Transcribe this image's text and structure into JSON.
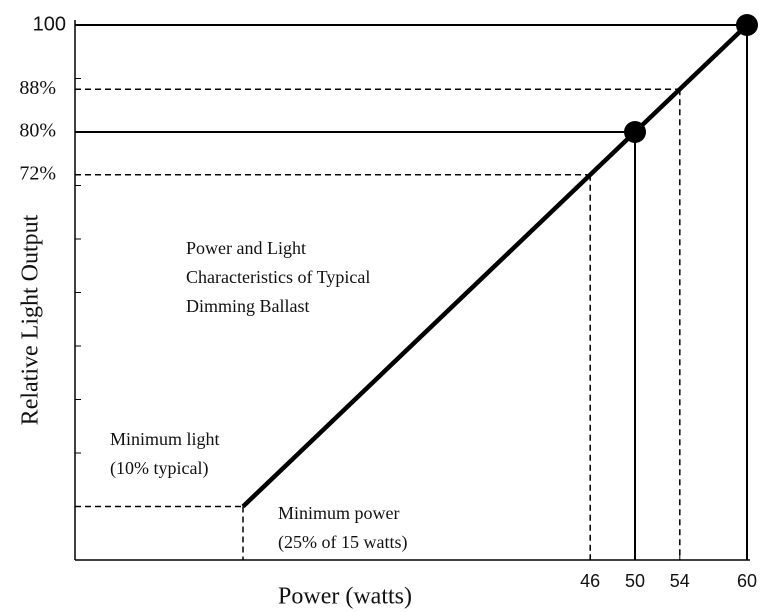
{
  "chart_data": {
    "type": "line",
    "title_lines": [
      "Power and Light",
      "Characteristics of Typical",
      "Dimming Ballast"
    ],
    "xlabel": "Power (watts)",
    "ylabel": "Relative Light Output",
    "x": [
      15,
      60
    ],
    "series": [
      {
        "color": "#000000",
        "values": [
          10,
          100
        ]
      }
    ],
    "points": [
      {
        "x": 50,
        "y": 80
      },
      {
        "x": 60,
        "y": 100
      }
    ],
    "reference_lines": [
      {
        "x": 54,
        "y": 88,
        "style": "dashed"
      },
      {
        "x": 50,
        "y": 80,
        "style": "solid"
      },
      {
        "x": 46,
        "y": 72,
        "style": "dashed"
      },
      {
        "x": 60,
        "y": 100,
        "style": "solid"
      },
      {
        "x": 15,
        "y": 10,
        "style": "dashed"
      }
    ],
    "annotations": [
      {
        "lines": [
          "Minimum light",
          "(10% typical)"
        ],
        "at": "light"
      },
      {
        "lines": [
          "Minimum power",
          "(25% of 15 watts)"
        ],
        "at": "power"
      }
    ],
    "xlim": [
      0,
      60
    ],
    "ylim": [
      0,
      100
    ],
    "xticks": [
      46,
      50,
      54,
      60
    ],
    "yticks": [
      100,
      {
        "value": 88,
        "label": "88%"
      },
      {
        "value": 80,
        "label": "80%"
      },
      {
        "value": 72,
        "label": "72%"
      }
    ],
    "yminorticks": [
      10,
      20,
      30,
      40,
      50,
      60,
      70,
      80,
      90
    ]
  }
}
